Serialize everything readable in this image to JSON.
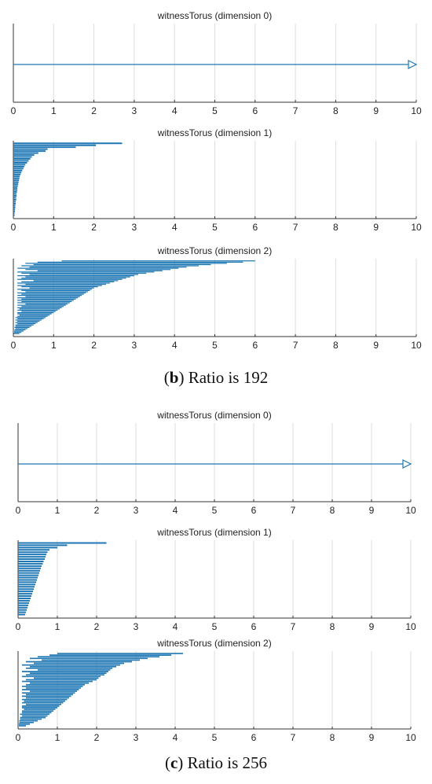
{
  "captions": [
    {
      "letter": "b",
      "text": " Ratio is 192"
    },
    {
      "letter": "c",
      "text": " Ratio is 256"
    }
  ],
  "style": {
    "bar_color": "#1f77b4",
    "grid_color": "#dddddd",
    "axis_color": "#333333"
  },
  "chart_data": [
    {
      "type": "barcode",
      "group": "b",
      "title": "witnessTorus (dimension 0)",
      "xlim": [
        0,
        10
      ],
      "xticks": [
        0,
        1,
        2,
        3,
        4,
        5,
        6,
        7,
        8,
        9,
        10
      ],
      "grid": true,
      "infinite_bars": [
        {
          "birth": 0
        }
      ],
      "intervals": []
    },
    {
      "type": "barcode",
      "group": "b",
      "title": "witnessTorus (dimension 1)",
      "xlim": [
        0,
        10
      ],
      "xticks": [
        0,
        1,
        2,
        3,
        4,
        5,
        6,
        7,
        8,
        9,
        10
      ],
      "grid": true,
      "infinite_bars": [],
      "intervals": [
        [
          0,
          2.7
        ],
        [
          0,
          2.05
        ],
        [
          0,
          1.55
        ],
        [
          0,
          0.85
        ],
        [
          0,
          0.8
        ],
        [
          0,
          0.62
        ],
        [
          0,
          0.52
        ],
        [
          0,
          0.46
        ],
        [
          0,
          0.42
        ],
        [
          0,
          0.38
        ],
        [
          0,
          0.34
        ],
        [
          0,
          0.3
        ],
        [
          0,
          0.27
        ],
        [
          0,
          0.25
        ],
        [
          0,
          0.22
        ],
        [
          0,
          0.2
        ],
        [
          0,
          0.18
        ],
        [
          0,
          0.16
        ],
        [
          0,
          0.15
        ],
        [
          0,
          0.14
        ],
        [
          0,
          0.13
        ],
        [
          0,
          0.12
        ],
        [
          0,
          0.11
        ],
        [
          0,
          0.1
        ],
        [
          0,
          0.1
        ],
        [
          0,
          0.09
        ],
        [
          0,
          0.08
        ],
        [
          0,
          0.08
        ],
        [
          0,
          0.07
        ],
        [
          0,
          0.07
        ],
        [
          0,
          0.06
        ],
        [
          0,
          0.06
        ],
        [
          0,
          0.05
        ],
        [
          0,
          0.05
        ],
        [
          0,
          0.04
        ],
        [
          0,
          0.04
        ],
        [
          0,
          0.03
        ],
        [
          0,
          0.03
        ]
      ]
    },
    {
      "type": "barcode",
      "group": "b",
      "title": "witnessTorus (dimension 2)",
      "xlim": [
        0,
        10
      ],
      "xticks": [
        0,
        1,
        2,
        3,
        4,
        5,
        6,
        7,
        8,
        9,
        10
      ],
      "grid": true,
      "infinite_bars": [],
      "intervals": [
        [
          1.2,
          6.0
        ],
        [
          0.6,
          5.7
        ],
        [
          0.3,
          5.3
        ],
        [
          0.5,
          4.9
        ],
        [
          0.2,
          4.6
        ],
        [
          0.4,
          4.3
        ],
        [
          0.1,
          4.1
        ],
        [
          0.3,
          3.9
        ],
        [
          0.6,
          3.7
        ],
        [
          0.1,
          3.5
        ],
        [
          0.2,
          3.3
        ],
        [
          0.4,
          3.1
        ],
        [
          0.1,
          3.0
        ],
        [
          0.3,
          2.9
        ],
        [
          0.2,
          2.8
        ],
        [
          0.1,
          2.7
        ],
        [
          0.5,
          2.6
        ],
        [
          0.2,
          2.5
        ],
        [
          0.1,
          2.4
        ],
        [
          0.3,
          2.3
        ],
        [
          0.1,
          2.2
        ],
        [
          0.2,
          2.1
        ],
        [
          0.4,
          2.0
        ],
        [
          0.1,
          1.95
        ],
        [
          0.2,
          1.9
        ],
        [
          0.3,
          1.85
        ],
        [
          0.1,
          1.8
        ],
        [
          0.2,
          1.75
        ],
        [
          0.1,
          1.7
        ],
        [
          0.3,
          1.65
        ],
        [
          0.1,
          1.6
        ],
        [
          0.2,
          1.55
        ],
        [
          0.1,
          1.5
        ],
        [
          0.2,
          1.45
        ],
        [
          0.1,
          1.4
        ],
        [
          0.3,
          1.35
        ],
        [
          0.1,
          1.3
        ],
        [
          0.2,
          1.25
        ],
        [
          0.1,
          1.2
        ],
        [
          0.15,
          1.15
        ],
        [
          0.1,
          1.1
        ],
        [
          0.2,
          1.05
        ],
        [
          0.1,
          1.0
        ],
        [
          0.1,
          0.95
        ],
        [
          0.15,
          0.9
        ],
        [
          0.1,
          0.85
        ],
        [
          0.05,
          0.8
        ],
        [
          0.1,
          0.75
        ],
        [
          0.05,
          0.7
        ],
        [
          0.1,
          0.65
        ],
        [
          0.05,
          0.6
        ],
        [
          0.1,
          0.55
        ],
        [
          0.05,
          0.5
        ],
        [
          0.05,
          0.45
        ],
        [
          0.03,
          0.4
        ],
        [
          0.05,
          0.35
        ],
        [
          0.03,
          0.3
        ],
        [
          0.02,
          0.25
        ],
        [
          0.02,
          0.2
        ],
        [
          0.01,
          0.15
        ]
      ]
    },
    {
      "type": "barcode",
      "group": "c",
      "title": "witnessTorus (dimension 0)",
      "xlim": [
        0,
        10
      ],
      "xticks": [
        0,
        1,
        2,
        3,
        4,
        5,
        6,
        7,
        8,
        9,
        10
      ],
      "grid": true,
      "infinite_bars": [
        {
          "birth": 0
        }
      ],
      "intervals": []
    },
    {
      "type": "barcode",
      "group": "c",
      "title": "witnessTorus (dimension 1)",
      "xlim": [
        0,
        10
      ],
      "xticks": [
        0,
        1,
        2,
        3,
        4,
        5,
        6,
        7,
        8,
        9,
        10
      ],
      "grid": true,
      "infinite_bars": [],
      "intervals": [
        [
          0,
          2.25
        ],
        [
          0,
          1.25
        ],
        [
          0,
          1.0
        ],
        [
          0,
          0.8
        ],
        [
          0,
          0.75
        ],
        [
          0,
          0.72
        ],
        [
          0,
          0.7
        ],
        [
          0,
          0.68
        ],
        [
          0,
          0.65
        ],
        [
          0,
          0.63
        ],
        [
          0,
          0.6
        ],
        [
          0,
          0.58
        ],
        [
          0,
          0.56
        ],
        [
          0,
          0.54
        ],
        [
          0,
          0.52
        ],
        [
          0,
          0.5
        ],
        [
          0,
          0.48
        ],
        [
          0,
          0.46
        ],
        [
          0,
          0.44
        ],
        [
          0,
          0.42
        ],
        [
          0,
          0.4
        ],
        [
          0,
          0.38
        ],
        [
          0,
          0.36
        ],
        [
          0,
          0.34
        ],
        [
          0,
          0.32
        ],
        [
          0,
          0.3
        ],
        [
          0,
          0.28
        ],
        [
          0,
          0.26
        ],
        [
          0,
          0.24
        ],
        [
          0,
          0.22
        ],
        [
          0,
          0.2
        ],
        [
          0,
          0.18
        ]
      ]
    },
    {
      "type": "barcode",
      "group": "c",
      "title": "witnessTorus (dimension 2)",
      "xlim": [
        0,
        10
      ],
      "xticks": [
        0,
        1,
        2,
        3,
        4,
        5,
        6,
        7,
        8,
        9,
        10
      ],
      "grid": true,
      "infinite_bars": [],
      "intervals": [
        [
          1.0,
          4.2
        ],
        [
          0.8,
          3.9
        ],
        [
          0.5,
          3.6
        ],
        [
          0.3,
          3.3
        ],
        [
          0.6,
          3.1
        ],
        [
          0.2,
          2.9
        ],
        [
          0.4,
          2.7
        ],
        [
          0.1,
          2.6
        ],
        [
          0.3,
          2.5
        ],
        [
          0.2,
          2.4
        ],
        [
          0.5,
          2.35
        ],
        [
          0.1,
          2.3
        ],
        [
          0.3,
          2.25
        ],
        [
          0.2,
          2.2
        ],
        [
          0.1,
          2.1
        ],
        [
          0.4,
          2.05
        ],
        [
          0.2,
          2.0
        ],
        [
          0.1,
          1.9
        ],
        [
          0.3,
          1.8
        ],
        [
          0.2,
          1.7
        ],
        [
          0.1,
          1.65
        ],
        [
          0.2,
          1.6
        ],
        [
          0.1,
          1.55
        ],
        [
          0.3,
          1.5
        ],
        [
          0.1,
          1.45
        ],
        [
          0.2,
          1.4
        ],
        [
          0.1,
          1.35
        ],
        [
          0.2,
          1.3
        ],
        [
          0.1,
          1.25
        ],
        [
          0.15,
          1.2
        ],
        [
          0.1,
          1.15
        ],
        [
          0.2,
          1.1
        ],
        [
          0.1,
          1.05
        ],
        [
          0.1,
          1.0
        ],
        [
          0.15,
          0.95
        ],
        [
          0.1,
          0.9
        ],
        [
          0.1,
          0.85
        ],
        [
          0.05,
          0.8
        ],
        [
          0.1,
          0.75
        ],
        [
          0.05,
          0.7
        ],
        [
          0.05,
          0.6
        ],
        [
          0.03,
          0.5
        ],
        [
          0.03,
          0.4
        ],
        [
          0.02,
          0.3
        ],
        [
          0.02,
          0.2
        ]
      ]
    }
  ]
}
